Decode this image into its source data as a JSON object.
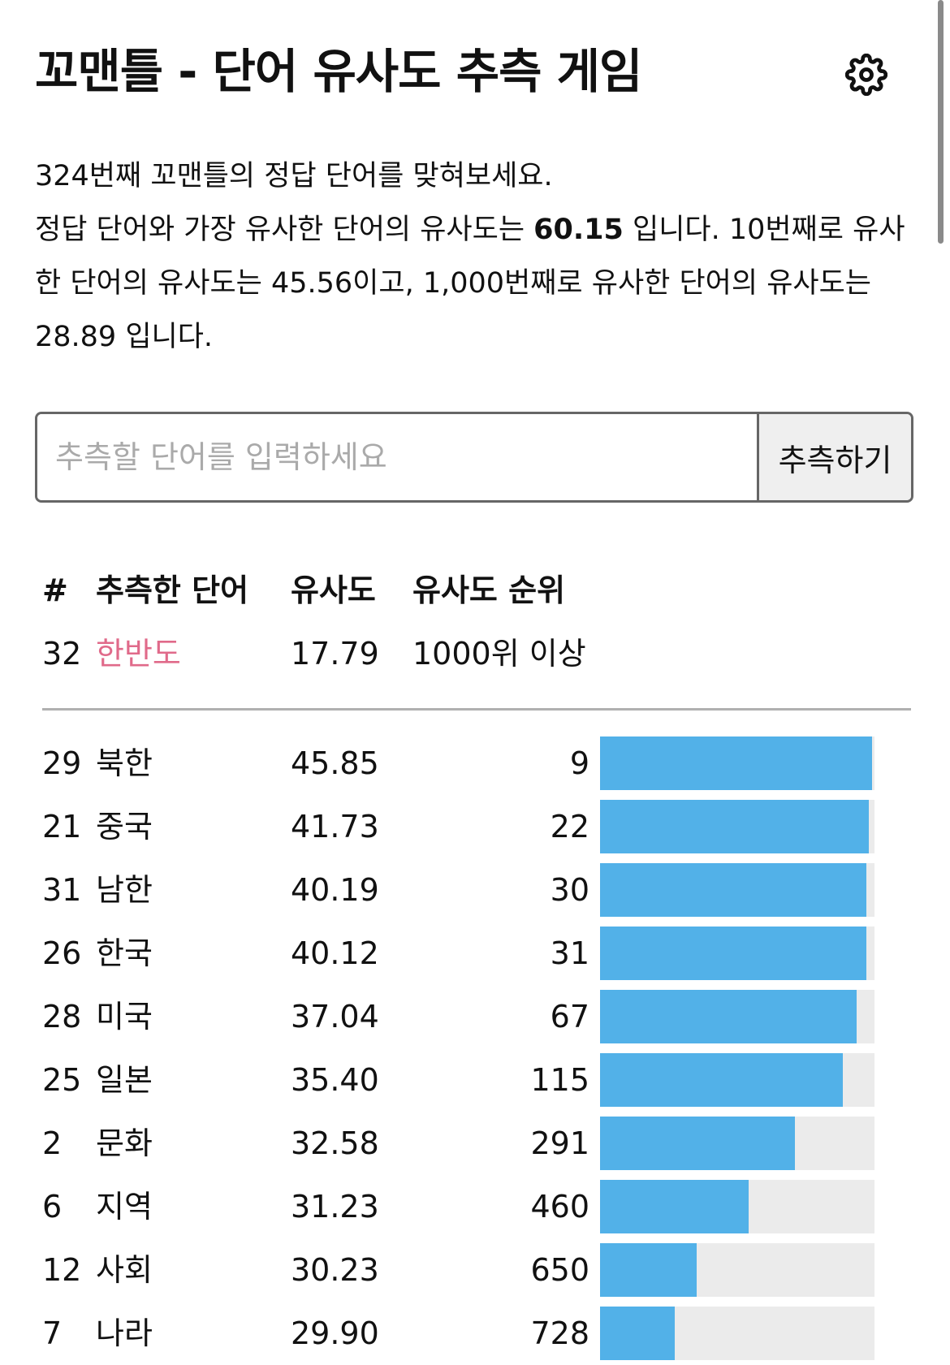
{
  "header": {
    "title": "꼬맨틀 - 단어 유사도 추측 게임"
  },
  "description": {
    "line1": "324번째 꼬맨틀의 정답 단어를 맞혀보세요.",
    "line2_prefix": "정답 단어와 가장 유사한 단어의 유사도는 ",
    "top_similarity": "60.15",
    "line2_suffix": " 입니다. 10번째로 유사한 단어의 유사도는 45.56이고, 1,000번째로 유사한 단어의 유사도는 28.89 입니다."
  },
  "guess_form": {
    "placeholder": "추측할 단어를 입력하세요",
    "value": "",
    "submit_label": "추측하기"
  },
  "table": {
    "headers": {
      "num": "#",
      "word": "추측한 단어",
      "similarity": "유사도",
      "rank": "유사도 순위"
    },
    "latest": {
      "num": "32",
      "word": "한반도",
      "similarity": "17.79",
      "rank": "1000위 이상"
    },
    "rows": [
      {
        "num": "29",
        "word": "북한",
        "similarity": "45.85",
        "rank": "9",
        "progress": 0.992
      },
      {
        "num": "21",
        "word": "중국",
        "similarity": "41.73",
        "rank": "22",
        "progress": 0.979
      },
      {
        "num": "31",
        "word": "남한",
        "similarity": "40.19",
        "rank": "30",
        "progress": 0.971
      },
      {
        "num": "26",
        "word": "한국",
        "similarity": "40.12",
        "rank": "31",
        "progress": 0.97
      },
      {
        "num": "28",
        "word": "미국",
        "similarity": "37.04",
        "rank": "67",
        "progress": 0.934
      },
      {
        "num": "25",
        "word": "일본",
        "similarity": "35.40",
        "rank": "115",
        "progress": 0.886
      },
      {
        "num": "2",
        "word": "문화",
        "similarity": "32.58",
        "rank": "291",
        "progress": 0.71
      },
      {
        "num": "6",
        "word": "지역",
        "similarity": "31.23",
        "rank": "460",
        "progress": 0.541
      },
      {
        "num": "12",
        "word": "사회",
        "similarity": "30.23",
        "rank": "650",
        "progress": 0.351
      },
      {
        "num": "7",
        "word": "나라",
        "similarity": "29.90",
        "rank": "728",
        "progress": 0.273
      }
    ]
  },
  "colors": {
    "bar_fill": "#52b1e8",
    "bar_track": "#ebebeb",
    "latest_word": "#e06a8a"
  }
}
